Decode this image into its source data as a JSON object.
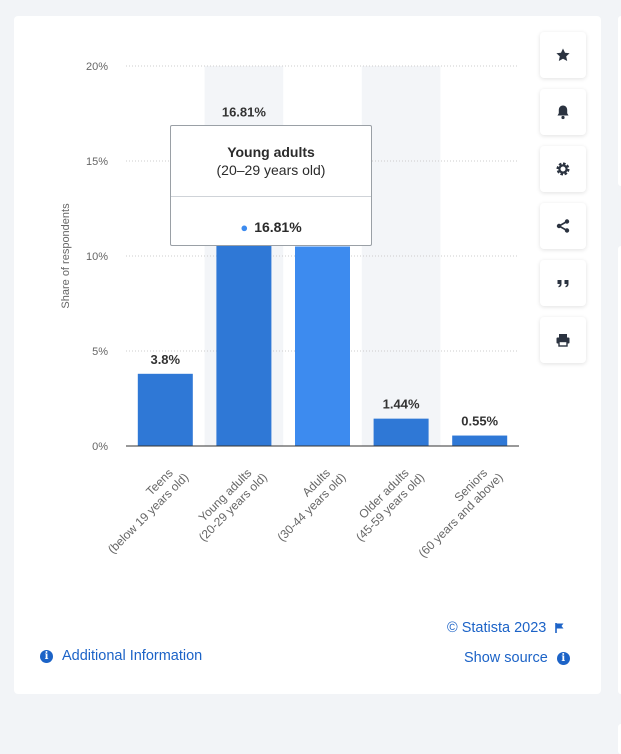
{
  "chart_data": {
    "type": "bar",
    "categories": [
      [
        "Teens",
        "(below 19 years old)"
      ],
      [
        "Young adults",
        "(20-29 years old)"
      ],
      [
        "Adults",
        "(30-44 years old)"
      ],
      [
        "Older adults",
        "(45-59 years old)"
      ],
      [
        "Seniors",
        "(60 years and above)"
      ]
    ],
    "values": [
      3.8,
      16.81,
      10.5,
      1.44,
      0.55
    ],
    "data_labels": [
      "3.8%",
      "16.81%",
      "",
      "1.44%",
      "0.55%"
    ],
    "ylabel": "Share of respondents",
    "ylim": [
      0,
      20
    ],
    "yticks": [
      0,
      5,
      10,
      15,
      20
    ],
    "ytick_labels": [
      "0%",
      "5%",
      "10%",
      "15%",
      "20%"
    ],
    "grid": true,
    "colors": {
      "bar": "#2f78d6",
      "bar_highlight": "#3d8bef",
      "band": "#f3f5f8",
      "axis": "#333333",
      "grid": "#cccccc"
    }
  },
  "tooltip": {
    "title": "Young adults",
    "subtitle": "(20–29 years old)",
    "value": "16.81%"
  },
  "toolbar": {
    "items": [
      {
        "name": "favorite-button",
        "icon": "star-icon"
      },
      {
        "name": "notification-button",
        "icon": "bell-icon"
      },
      {
        "name": "settings-button",
        "icon": "gear-icon"
      },
      {
        "name": "share-button",
        "icon": "share-icon"
      },
      {
        "name": "cite-button",
        "icon": "quote-icon"
      },
      {
        "name": "print-button",
        "icon": "print-icon"
      }
    ]
  },
  "footer": {
    "copyright": "© Statista 2023",
    "show_source": "Show source",
    "additional_info": "Additional Information"
  }
}
